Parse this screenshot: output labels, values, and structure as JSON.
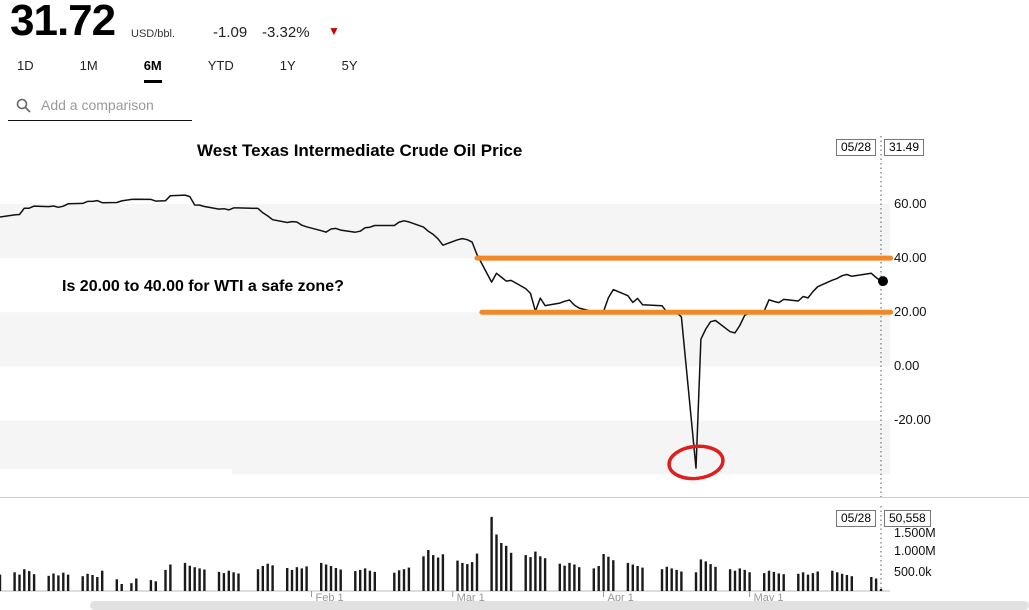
{
  "header": {
    "price": "31.72",
    "unit": "USD/bbl.",
    "change": "-1.09",
    "change_pct": "-3.32%",
    "down_triangle": "▼"
  },
  "tabs": [
    {
      "label": "1D",
      "active": false
    },
    {
      "label": "1M",
      "active": false
    },
    {
      "label": "6M",
      "active": true
    },
    {
      "label": "YTD",
      "active": false
    },
    {
      "label": "1Y",
      "active": false
    },
    {
      "label": "5Y",
      "active": false
    }
  ],
  "comparison": {
    "placeholder": "Add a comparison"
  },
  "colors": {
    "zone_orange": "#ef8929",
    "annotation_red": "#dd1f1f",
    "change_triangle_red": "#cc0000",
    "line_black": "#111111"
  },
  "chart": {
    "title": "West Texas Intermediate Crude Oil Price",
    "annotation": "Is 20.00 to 40.00 for WTI a safe zone?",
    "crosshair_date": "05/28",
    "crosshair_price": "31.49",
    "y_axis_labels": [
      "60.00",
      "40.00",
      "20.00",
      "0.00",
      "-20.00"
    ]
  },
  "volume": {
    "crosshair_date": "05/28",
    "crosshair_volume": "50,558",
    "y_axis_labels": [
      "1.500M",
      "1.000M",
      "500.0k"
    ]
  },
  "chart_data": [
    {
      "type": "line",
      "title": "West Texas Intermediate Crude Oil Price",
      "ylabel": "USD/bbl.",
      "ylim": [
        -45,
        75
      ],
      "y_ticks": [
        60,
        40,
        20,
        0,
        -20
      ],
      "x_domain_days": [
        0,
        181
      ],
      "crosshair_day": 181,
      "last_point": {
        "date": "05/28",
        "value": 31.49
      },
      "zone_lines": [
        {
          "value": 40.0,
          "from_day": 98,
          "to_day": 183
        },
        {
          "value": 20.0,
          "from_day": 99,
          "to_day": 183
        }
      ],
      "annotation_circle": {
        "day": 143,
        "value": -35.5
      },
      "days": [
        0,
        3,
        4,
        5,
        6,
        7,
        10,
        11,
        12,
        13,
        14,
        17,
        18,
        19,
        20,
        21,
        24,
        25,
        27,
        28,
        31,
        32,
        34,
        35,
        38,
        39,
        40,
        41,
        42,
        45,
        46,
        47,
        48,
        49,
        53,
        54,
        55,
        56,
        59,
        60,
        61,
        62,
        63,
        66,
        67,
        68,
        69,
        70,
        73,
        74,
        75,
        76,
        77,
        81,
        82,
        83,
        84,
        87,
        88,
        89,
        90,
        91,
        94,
        95,
        96,
        97,
        98,
        101,
        102,
        103,
        104,
        105,
        108,
        109,
        110,
        111,
        112,
        115,
        116,
        117,
        118,
        119,
        122,
        123,
        124,
        125,
        126,
        129,
        130,
        131,
        132,
        136,
        137,
        138,
        139,
        140,
        143,
        144,
        145,
        146,
        147,
        150,
        151,
        152,
        153,
        154,
        157,
        158,
        159,
        160,
        161,
        164,
        165,
        166,
        167,
        168,
        171,
        172,
        173,
        174,
        175,
        179,
        180,
        181
      ],
      "prices": [
        55.17,
        55.96,
        56.1,
        58.43,
        58.43,
        59.2,
        59.02,
        59.24,
        58.76,
        59.18,
        60.07,
        60.21,
        60.94,
        60.93,
        61.22,
        60.44,
        60.52,
        61.11,
        61.68,
        61.72,
        61.68,
        61.06,
        61.18,
        63.05,
        63.27,
        62.7,
        59.61,
        59.56,
        59.04,
        58.08,
        58.23,
        57.81,
        58.52,
        58.54,
        58.34,
        56.74,
        55.59,
        54.19,
        53.14,
        53.48,
        53.33,
        52.14,
        51.56,
        50.11,
        49.61,
        50.75,
        50.95,
        50.32,
        49.57,
        49.94,
        51.17,
        51.42,
        52.05,
        52.05,
        53.29,
        53.78,
        53.38,
        51.43,
        49.9,
        48.73,
        47.09,
        44.76,
        46.75,
        47.18,
        46.78,
        45.9,
        41.28,
        31.13,
        34.36,
        32.98,
        31.5,
        31.73,
        28.7,
        26.95,
        20.37,
        25.22,
        22.43,
        23.36,
        24.01,
        24.49,
        22.6,
        21.51,
        20.09,
        20.48,
        20.31,
        25.32,
        28.34,
        26.08,
        23.63,
        25.09,
        22.76,
        22.41,
        20.11,
        19.87,
        19.87,
        18.27,
        -37.63,
        10.01,
        13.78,
        16.5,
        16.94,
        12.78,
        12.34,
        15.06,
        18.84,
        19.78,
        20.39,
        24.56,
        23.99,
        23.55,
        24.74,
        24.14,
        25.78,
        25.29,
        27.56,
        29.43,
        31.82,
        32.5,
        33.49,
        33.92,
        33.25,
        34.35,
        32.81,
        31.49
      ]
    },
    {
      "type": "bar",
      "name": "Volume",
      "days_shared_with_price_chart": true,
      "y_ticks": [
        "1.500M",
        "1.000M",
        "500.0k"
      ],
      "last": {
        "date": "05/28",
        "volume": 50558
      },
      "x_axis": [
        {
          "label": "Feb 1",
          "day": 64
        },
        {
          "label": "Mar 1",
          "day": 93
        },
        {
          "label": "Apr 1",
          "day": 124
        },
        {
          "label": "May 1",
          "day": 154
        }
      ],
      "values_thousands": [
        420,
        480,
        420,
        560,
        510,
        430,
        390,
        450,
        400,
        470,
        420,
        380,
        440,
        410,
        360,
        520,
        300,
        180,
        200,
        320,
        280,
        250,
        540,
        680,
        720,
        650,
        610,
        580,
        550,
        490,
        460,
        520,
        480,
        450,
        560,
        640,
        700,
        660,
        590,
        540,
        610,
        580,
        630,
        720,
        680,
        640,
        590,
        550,
        510,
        540,
        580,
        520,
        490,
        470,
        530,
        560,
        600,
        890,
        1050,
        920,
        860,
        940,
        780,
        720,
        690,
        740,
        960,
        1900,
        1450,
        1230,
        1160,
        980,
        920,
        870,
        1010,
        890,
        840,
        700,
        650,
        720,
        680,
        610,
        580,
        640,
        950,
        880,
        790,
        720,
        680,
        640,
        600,
        560,
        620,
        580,
        540,
        500,
        480,
        810,
        760,
        690,
        620,
        560,
        520,
        580,
        540,
        480,
        460,
        520,
        490,
        450,
        430,
        440,
        480,
        420,
        460,
        500,
        520,
        480,
        440,
        410,
        380,
        360,
        320,
        50.558
      ]
    }
  ]
}
